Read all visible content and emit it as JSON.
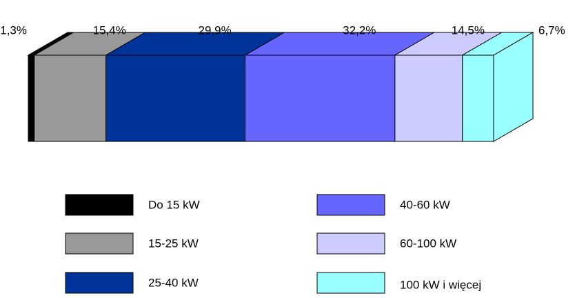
{
  "chart_data": {
    "type": "bar",
    "orientation": "horizontal",
    "stacked": true,
    "three_d": true,
    "xlim": [
      0,
      100
    ],
    "series": [
      {
        "name": "Do 15 kW",
        "color": "#000000",
        "values": [
          1.3
        ],
        "value_labels": [
          "1,3%"
        ]
      },
      {
        "name": "15-25 kW",
        "color": "#999999",
        "values": [
          15.4
        ],
        "value_labels": [
          "15,4%"
        ]
      },
      {
        "name": "25-40 kW",
        "color": "#003399",
        "values": [
          29.9
        ],
        "value_labels": [
          "29,9%"
        ]
      },
      {
        "name": "40-60 kW",
        "color": "#6666ff",
        "values": [
          32.2
        ],
        "value_labels": [
          "32,2%"
        ]
      },
      {
        "name": "60-100 kW",
        "color": "#ccccff",
        "values": [
          14.5
        ],
        "value_labels": [
          "14,5%"
        ]
      },
      {
        "name": "100 kW i więcej",
        "color": "#99ffff",
        "values": [
          6.7
        ],
        "value_labels": [
          "6,7%"
        ]
      }
    ]
  }
}
